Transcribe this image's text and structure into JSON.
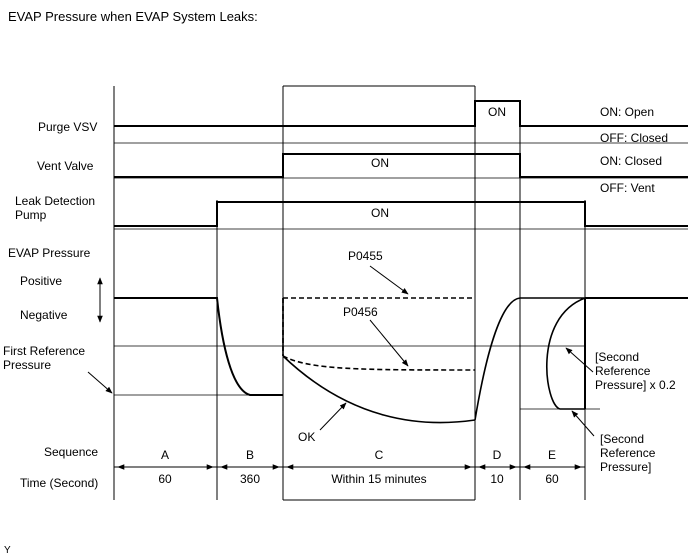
{
  "title": "EVAP Pressure when EVAP System Leaks:",
  "rows": {
    "purge_vsv": "Purge VSV",
    "vent_valve": "Vent Valve",
    "leak_pump_line1": "Leak Detection",
    "leak_pump_line2": "Pump",
    "evap_pressure": "EVAP Pressure",
    "positive": "Positive",
    "negative": "Negative",
    "first_ref_line1": "First Reference",
    "first_ref_line2": "Pressure",
    "sequence": "Sequence",
    "time": "Time (Second)"
  },
  "states": {
    "purge_on": "ON",
    "vent_on": "ON",
    "pump_on": "ON",
    "on_open": "ON: Open",
    "off_closed": "OFF: Closed",
    "on_closed": "ON: Closed",
    "off_vent": "OFF: Vent"
  },
  "curves": {
    "p0455": "P0455",
    "p0456": "P0456",
    "ok": "OK"
  },
  "reference": {
    "second_x02_line1": "[Second",
    "second_x02_line2": "Reference",
    "second_x02_line3": "Pressure] x 0.2",
    "second_line1": "[Second",
    "second_line2": "Reference",
    "second_line3": "Pressure]"
  },
  "sequence": [
    {
      "label": "A",
      "time": "60"
    },
    {
      "label": "B",
      "time": "360"
    },
    {
      "label": "C",
      "time": "Within 15 minutes"
    },
    {
      "label": "D",
      "time": "10"
    },
    {
      "label": "E",
      "time": "60"
    }
  ],
  "footer": "Y"
}
